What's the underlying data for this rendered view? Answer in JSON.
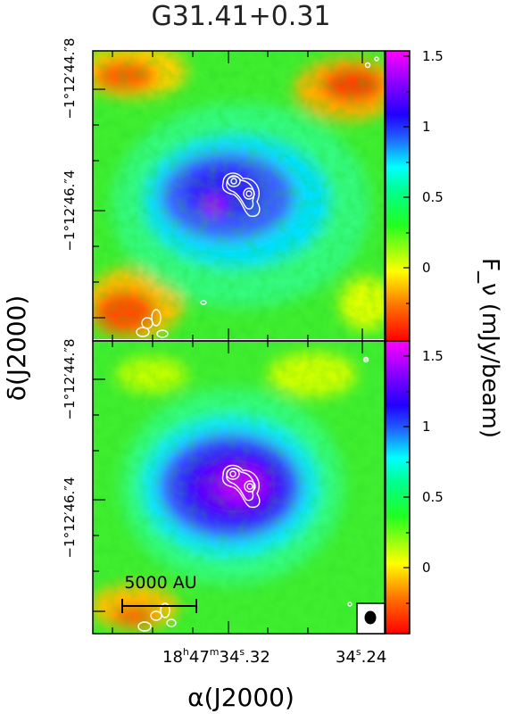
{
  "chart_data": {
    "type": "heatmap",
    "title": "G31.41+0.31",
    "xlabel": "α(J2000)",
    "ylabel": "δ(J2000)",
    "colorbar_label": "F_ν (mJy/beam)",
    "colorbar_ticks": [
      "1.5",
      "1",
      "0.5",
      "0"
    ],
    "colorbar_range": [
      -0.4,
      1.6
    ],
    "colormap": [
      "#ff0000",
      "#ff8000",
      "#ffff00",
      "#00ff00",
      "#00ffff",
      "#0000ff",
      "#ff00ff"
    ],
    "contour_color": "#ffffff",
    "x_ticks": [
      {
        "h": "18",
        "m": "47",
        "s": "34",
        "frac": "32",
        "label": "18h47m34s.32"
      },
      {
        "h": "",
        "m": "",
        "s": "34",
        "frac": "24",
        "label": "34s.24"
      }
    ],
    "panels": [
      {
        "name": "top",
        "y_ticks": [
          "−1°12′44.″8",
          "−1°12′46.″4"
        ]
      },
      {
        "name": "bottom",
        "y_ticks": [
          "−1°12′44.″8",
          "−1°12′46.″4"
        ]
      }
    ],
    "scale_bar": {
      "label": "5000 AU"
    },
    "beam": {
      "shape": "ellipse"
    }
  }
}
